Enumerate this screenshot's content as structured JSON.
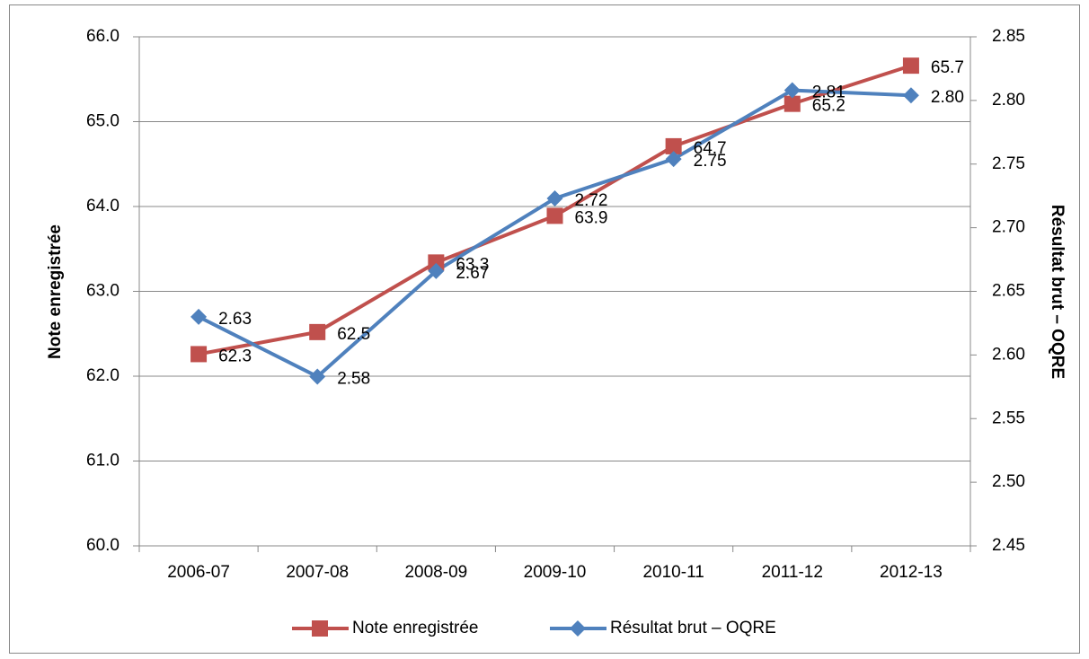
{
  "chart_data": {
    "type": "line",
    "categories": [
      "2006-07",
      "2007-08",
      "2008-09",
      "2009-10",
      "2010-11",
      "2011-12",
      "2012-13"
    ],
    "series": [
      {
        "name": "Note enregistrée",
        "color": "#c0504d",
        "axis": "y",
        "marker": "square",
        "values": [
          62.26,
          62.52,
          63.34,
          63.89,
          64.71,
          65.21,
          65.66
        ],
        "value_labels": [
          "62.3",
          "62.5",
          "63.3",
          "63.9",
          "64.7",
          "65.2",
          "65.7"
        ]
      },
      {
        "name": "Résultat brut – OQRE",
        "color": "#4f81bd",
        "axis": "y2",
        "marker": "diamond",
        "values": [
          2.63,
          2.583,
          2.666,
          2.723,
          2.754,
          2.808,
          2.804
        ],
        "value_labels": [
          "2.63",
          "2.58",
          "2.67",
          "2.72",
          "2.75",
          "2.81",
          "2.80"
        ]
      }
    ],
    "ylabel": "Note enregistrée",
    "y2label": "Résultat brut – OQRE",
    "ylim": [
      60,
      66
    ],
    "yticks": [
      {
        "value": 60,
        "label": "60.0"
      },
      {
        "value": 61,
        "label": "61.0"
      },
      {
        "value": 62,
        "label": "62.0"
      },
      {
        "value": 63,
        "label": "63.0"
      },
      {
        "value": 64,
        "label": "64.0"
      },
      {
        "value": 65,
        "label": "65.0"
      },
      {
        "value": 66,
        "label": "66.0"
      }
    ],
    "y2lim": [
      2.45,
      2.85
    ],
    "y2ticks": [
      2.45,
      {
        "value": 2.5,
        "label": "2.50"
      },
      2.55,
      {
        "value": 2.6,
        "label": "2.60"
      },
      2.65,
      {
        "value": 2.7,
        "label": "2.70"
      },
      2.75,
      {
        "value": 2.8,
        "label": "2.80"
      },
      2.85
    ],
    "grid": true,
    "legend": "bottom"
  }
}
